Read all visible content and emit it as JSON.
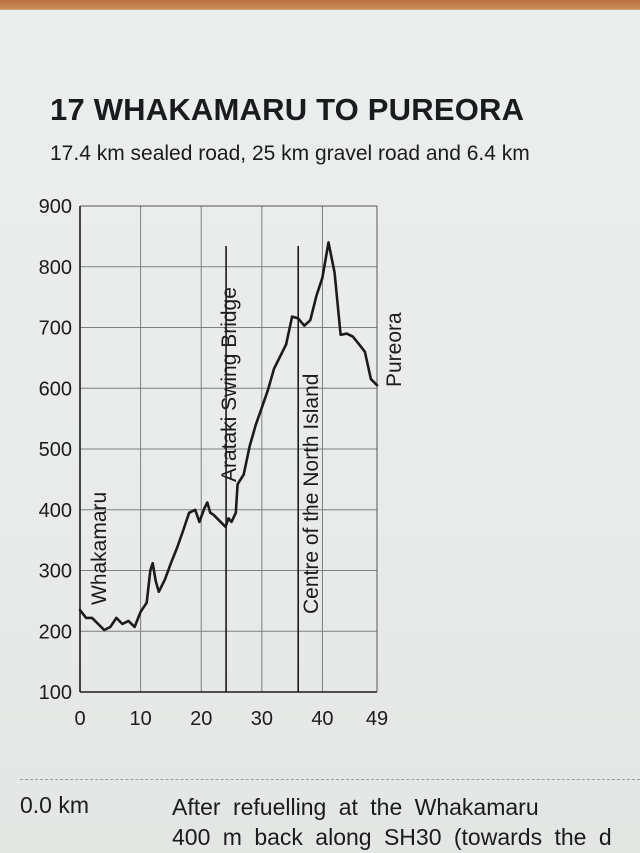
{
  "heading": {
    "title": "17 WHAKAMARU TO PUREORA",
    "subtitle": "17.4 km sealed road, 25 km gravel road and 6.4 km"
  },
  "chart_data": {
    "type": "line",
    "title": "",
    "xlabel": "",
    "ylabel": "",
    "xlim": [
      0,
      49
    ],
    "ylim": [
      100,
      900
    ],
    "x_ticks": [
      "0",
      "10",
      "20",
      "30",
      "40",
      "49"
    ],
    "y_ticks": [
      "900",
      "800",
      "700",
      "600",
      "500",
      "400",
      "300",
      "200",
      "100"
    ],
    "grid": true,
    "series": [
      {
        "color": "#1b1b1b",
        "points": [
          [
            0,
            235
          ],
          [
            1,
            222
          ],
          [
            2,
            222
          ],
          [
            3,
            212
          ],
          [
            4,
            202
          ],
          [
            5,
            207
          ],
          [
            6,
            222
          ],
          [
            7,
            212
          ],
          [
            8,
            217
          ],
          [
            9,
            207
          ],
          [
            10,
            232
          ],
          [
            11,
            247
          ],
          [
            11.6,
            300
          ],
          [
            12,
            312
          ],
          [
            12.5,
            282
          ],
          [
            13,
            265
          ],
          [
            14,
            285
          ],
          [
            15,
            312
          ],
          [
            16,
            337
          ],
          [
            17,
            365
          ],
          [
            18,
            395
          ],
          [
            19,
            400
          ],
          [
            19.7,
            380
          ],
          [
            20.5,
            402
          ],
          [
            21,
            412
          ],
          [
            21.5,
            395
          ],
          [
            22,
            392
          ],
          [
            23,
            382
          ],
          [
            24,
            372
          ],
          [
            24.5,
            386
          ],
          [
            25,
            380
          ],
          [
            25.7,
            395
          ],
          [
            26,
            442
          ],
          [
            27,
            458
          ],
          [
            28,
            505
          ],
          [
            29,
            540
          ],
          [
            30,
            568
          ],
          [
            31,
            597
          ],
          [
            32,
            632
          ],
          [
            33,
            652
          ],
          [
            34,
            672
          ],
          [
            35,
            718
          ],
          [
            36,
            715
          ],
          [
            37,
            703
          ],
          [
            38,
            712
          ],
          [
            39,
            752
          ],
          [
            40,
            782
          ],
          [
            41,
            840
          ],
          [
            42,
            790
          ],
          [
            43,
            688
          ],
          [
            44,
            690
          ],
          [
            45,
            685
          ],
          [
            46,
            673
          ],
          [
            47,
            660
          ],
          [
            48,
            615
          ],
          [
            49,
            605
          ]
        ]
      }
    ],
    "annotations": [
      {
        "x": 0,
        "label": "Whakamaru"
      },
      {
        "x": 24.1,
        "label": "Arataki Swing Bridge"
      },
      {
        "x": 36,
        "label": "Centre of the North Island"
      },
      {
        "x": 49,
        "label": "Pureora"
      }
    ]
  },
  "footer": {
    "km": "0.0 km",
    "line1": "After refuelling at the Whakamaru",
    "line2": "400 m back along SH30 (towards the d"
  },
  "style": {
    "paper_color": "#e9ebe9",
    "ink_color": "#1b1b1b"
  }
}
